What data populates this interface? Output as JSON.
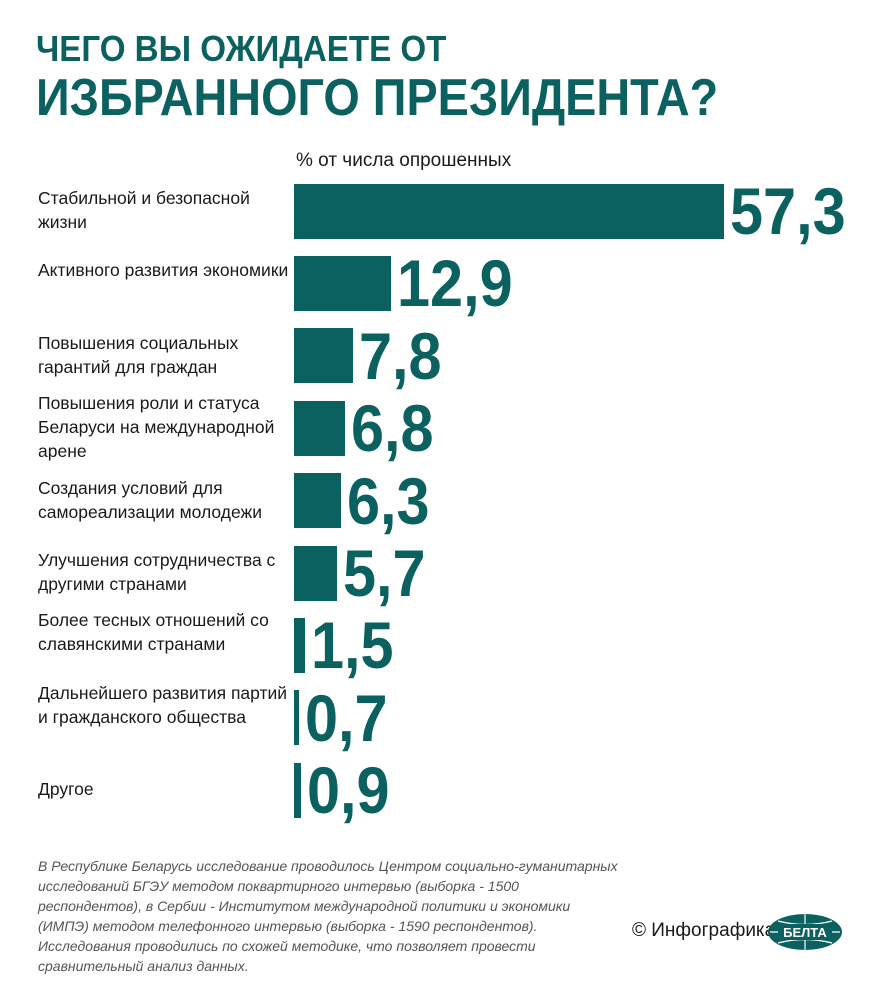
{
  "title_line1": "ЧЕГО ВЫ ОЖИДАЕТЕ ОТ",
  "title_line2": "ИЗБРАННОГО ПРЕЗИДЕНТА?",
  "chart_data": {
    "type": "bar",
    "orientation": "horizontal",
    "unit_label": "% от числа опрошенных",
    "categories": [
      "Стабильной и безопасной жизни",
      "Активного развития экономики",
      "Повышения социальных гарантий для граждан",
      "Повышения роли и статуса Беларуси на международной арене",
      "Создания условий для самореализации молодежи",
      "Улучшения сотрудничества с другими странами",
      "Более тесных отношений со славянскими странами",
      "Дальнейшего развития партий и гражданского общества",
      "Другое"
    ],
    "values": [
      57.3,
      12.9,
      7.8,
      6.8,
      6.3,
      5.7,
      1.5,
      0.7,
      0.9
    ],
    "value_labels": [
      "57,3",
      "12,9",
      "7,8",
      "6,8",
      "6,3",
      "5,7",
      "1,5",
      "0,7",
      "0,9"
    ],
    "bar_color": "#0b6160",
    "grid": false
  },
  "footnote": "В Республике Беларусь исследование проводилось Центром социально-гуманитарных исследований БГЭУ методом поквартирного интервью (выборка - 1500 респондентов), в Сербии - Институтом международной политики и экономики (ИМПЭ) методом телефонного интервью (выборка - 1590 респондентов). Исследования проводились по схожей методике, что позволяет провести сравнительный анализ данных.",
  "credit": "© Инфографика",
  "logo_text": "БЕЛТА"
}
